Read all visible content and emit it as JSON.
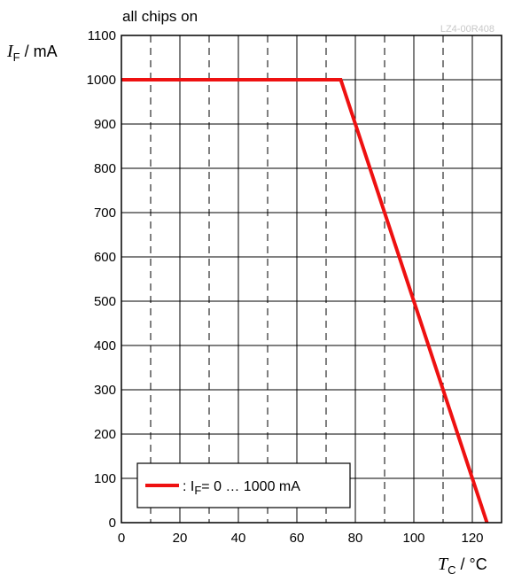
{
  "chart_data": {
    "type": "line",
    "title": "all chips on",
    "figure_code": "LZ4-00R408",
    "xlabel": {
      "symbol": "T",
      "subscript": "C",
      "unit": " / °C"
    },
    "ylabel": {
      "symbol": "I",
      "subscript": "F",
      "unit": " / mA"
    },
    "xlim": [
      0,
      130
    ],
    "ylim": [
      0,
      1100
    ],
    "x_ticks": [
      0,
      20,
      40,
      60,
      80,
      100,
      120
    ],
    "y_ticks": [
      0,
      100,
      200,
      300,
      400,
      500,
      600,
      700,
      800,
      900,
      1000,
      1100
    ],
    "x_minor_gridlines_dashed": [
      10,
      30,
      50,
      70,
      90,
      110
    ],
    "grid": true,
    "legend_position": "bottom-left",
    "series": [
      {
        "name_prefix": ": I",
        "name_subscript": "F",
        "name_suffix": "= 0 … 1000 mA",
        "color": "#ee1111",
        "x": [
          0,
          75,
          125
        ],
        "y": [
          1000,
          1000,
          0
        ]
      }
    ]
  }
}
